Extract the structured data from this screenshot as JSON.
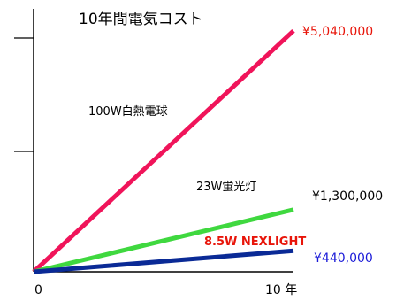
{
  "chart_data": {
    "type": "line",
    "title": "10年間電気コスト",
    "x": [
      0,
      10
    ],
    "xlim": [
      0,
      10
    ],
    "ylim": [
      0,
      5500000
    ],
    "x_tick_labels": [
      "0",
      "10 年"
    ],
    "grid": false,
    "series": [
      {
        "name": "100W白熱電球",
        "values": [
          0,
          5040000
        ],
        "value_label": "¥5,040,000",
        "color": "#f0145a",
        "label_color": "#e8150a"
      },
      {
        "name": "23W蛍光灯",
        "values": [
          0,
          1300000
        ],
        "value_label": "¥1,300,000",
        "color": "#3fd83f",
        "label_color": "#000000"
      },
      {
        "name": "8.5W NEXLIGHT",
        "values": [
          0,
          440000
        ],
        "value_label": "¥440,000",
        "color": "#0a2a96",
        "label_color": "#1a1ad8",
        "name_color": "#e8150a"
      }
    ]
  }
}
